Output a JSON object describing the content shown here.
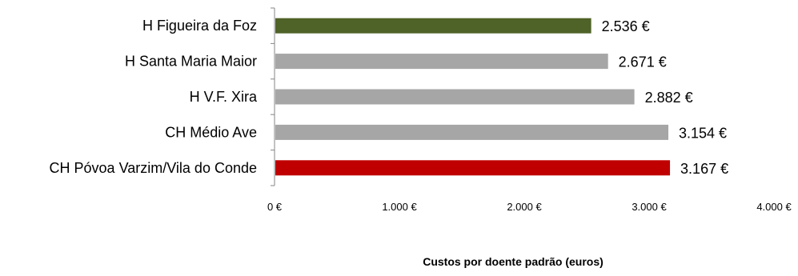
{
  "chart_data": {
    "type": "bar",
    "orientation": "horizontal",
    "categories": [
      "H Figueira da Foz",
      "H Santa Maria Maior",
      "H V.F. Xira",
      "CH Médio Ave",
      "CH Póvoa Varzim/Vila do Conde"
    ],
    "values": [
      2536,
      2671,
      2882,
      3154,
      3167
    ],
    "value_labels": [
      "2.536 €",
      "2.671 €",
      "2.882 €",
      "3.154 €",
      "3.167 €"
    ],
    "bar_colors": [
      "#4f6228",
      "#a6a6a6",
      "#a6a6a6",
      "#a6a6a6",
      "#c00000"
    ],
    "xlabel": "Custos por doente padrão (euros)",
    "xlim": [
      0,
      4000
    ],
    "x_ticks": [
      0,
      1000,
      2000,
      3000,
      4000
    ],
    "x_tick_labels": [
      "0 €",
      "1.000 €",
      "2.000 €",
      "3.000 €",
      "4.000 €"
    ],
    "grid": false,
    "legend": "none"
  }
}
